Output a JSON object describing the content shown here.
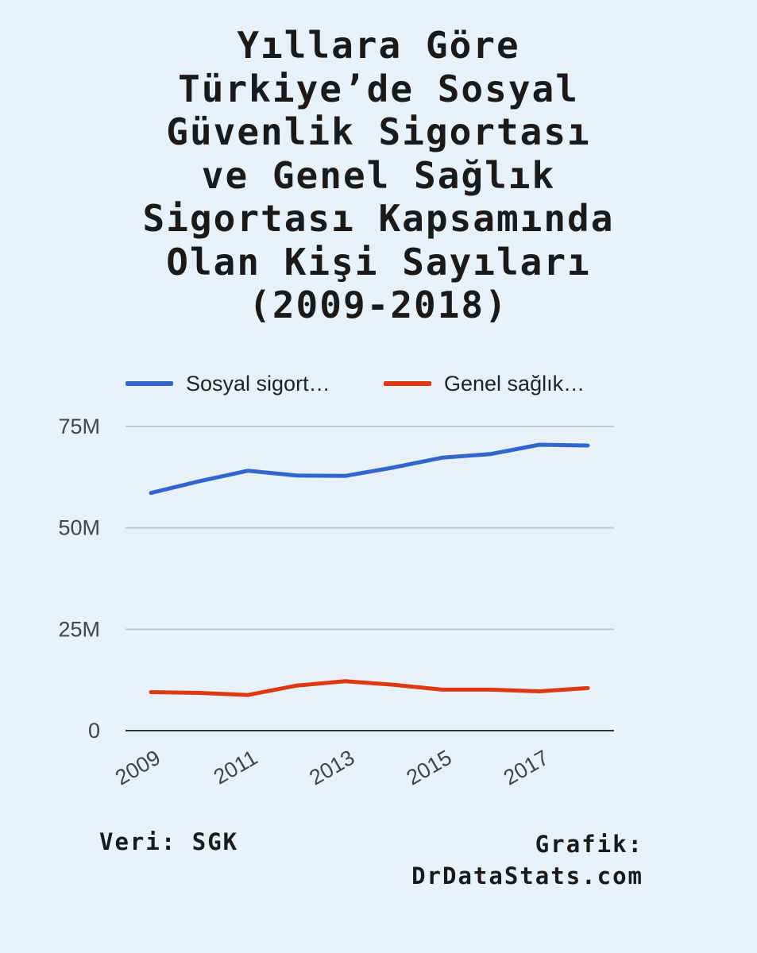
{
  "title": "Yıllara Göre\nTürkiye’de Sosyal\nGüvenlik Sigortası\nve Genel Sağlık\nSigortası Kapsamında\nOlan Kişi Sayıları\n(2009-2018)",
  "legend": {
    "items": [
      {
        "label": "Sosyal sigort…",
        "color": "#3366cc"
      },
      {
        "label": "Genel sağlık…",
        "color": "#dc3912"
      }
    ]
  },
  "footer": {
    "source": "Veri: SGK",
    "credit_line1": "Grafik:",
    "credit_line2": "DrDataStats.com"
  },
  "chart_data": {
    "type": "line",
    "title": "Yıllara Göre Türkiye’de Sosyal Güvenlik Sigortası ve Genel Sağlık Sigortası Kapsamında Olan Kişi Sayıları (2009-2018)",
    "x": [
      2009,
      2010,
      2011,
      2012,
      2013,
      2014,
      2015,
      2016,
      2017,
      2018
    ],
    "x_tick_labels": [
      "2009",
      "2011",
      "2013",
      "2015",
      "2017"
    ],
    "y_tick_labels": [
      "0",
      "25M",
      "50M",
      "75M"
    ],
    "y_ticks": [
      0,
      25000000,
      50000000,
      75000000
    ],
    "ylim": [
      0,
      75000000
    ],
    "grid": true,
    "legend_position": "top",
    "series": [
      {
        "name": "Sosyal sigort…",
        "color": "#3366cc",
        "values": [
          58600000,
          61500000,
          64100000,
          62900000,
          62800000,
          64900000,
          67300000,
          68200000,
          70500000,
          70300000
        ]
      },
      {
        "name": "Genel sağlık…",
        "color": "#dc3912",
        "values": [
          9500000,
          9300000,
          8800000,
          11100000,
          12200000,
          11300000,
          10100000,
          10100000,
          9700000,
          10500000
        ]
      }
    ]
  }
}
